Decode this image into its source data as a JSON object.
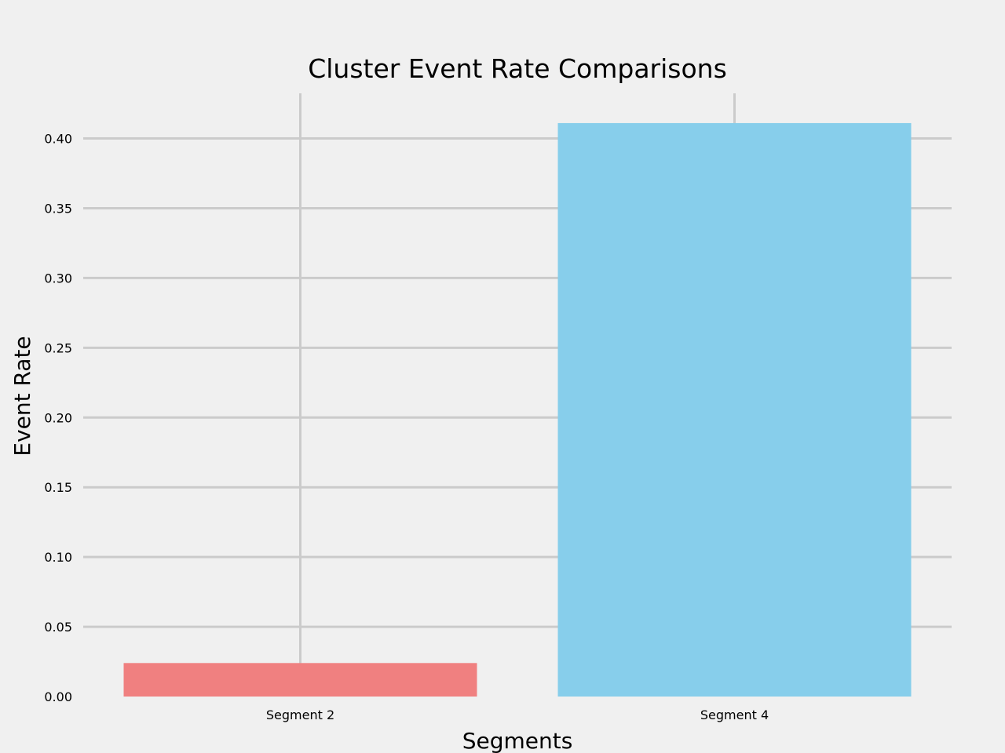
{
  "chart_data": {
    "type": "bar",
    "title": "Cluster Event Rate Comparisons",
    "xlabel": "Segments",
    "ylabel": "Event Rate",
    "categories": [
      "Segment 2",
      "Segment 4"
    ],
    "values": [
      0.024,
      0.411
    ],
    "colors": [
      "#f08080",
      "#87ceeb"
    ],
    "ylim": [
      0,
      0.43
    ],
    "yticks": [
      "0.00",
      "0.05",
      "0.10",
      "0.15",
      "0.20",
      "0.25",
      "0.30",
      "0.35",
      "0.40"
    ],
    "grid": true,
    "legend": "none"
  }
}
